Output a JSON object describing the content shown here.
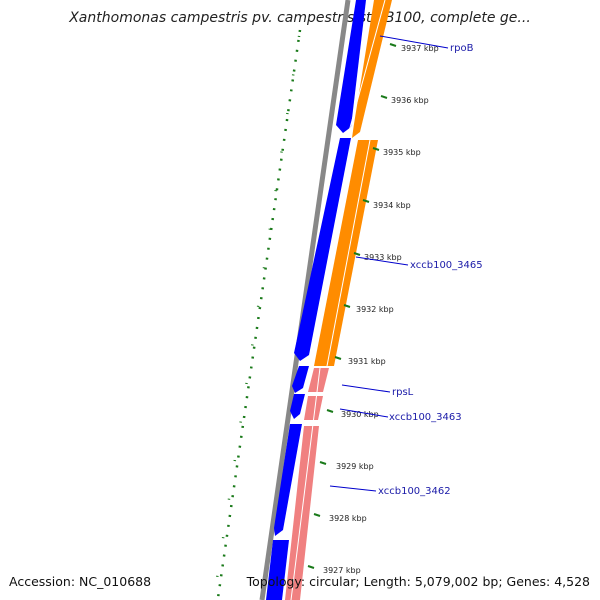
{
  "title": "Xanthomonas campestris pv. campestris str. B100, complete ge...",
  "footer": {
    "accession": "Accession: NC_010688",
    "summary": "Topology: circular; Length: 5,079,002 bp; Genes: 4,528"
  },
  "colors": {
    "backbone": "#888888",
    "forward_cds": "#0000ff",
    "reverse_cds": "#ff8c00",
    "rna_gene": "#f08080",
    "gc_skew": "#1a7a1a",
    "tick": "#1a7a1a",
    "label_line": "#0000cc"
  },
  "ticks": [
    "3937 kbp",
    "3936 kbp",
    "3935 kbp",
    "3934 kbp",
    "3933 kbp",
    "3932 kbp",
    "3931 kbp",
    "3930 kbp",
    "3929 kbp",
    "3928 kbp",
    "3927 kbp"
  ],
  "gene_labels": {
    "rpob": "rpoB",
    "xccb3465": "xccb100_3465",
    "rpsl": "rpsL",
    "xccb3463": "xccb100_3463",
    "xccb3462": "xccb100_3462"
  }
}
